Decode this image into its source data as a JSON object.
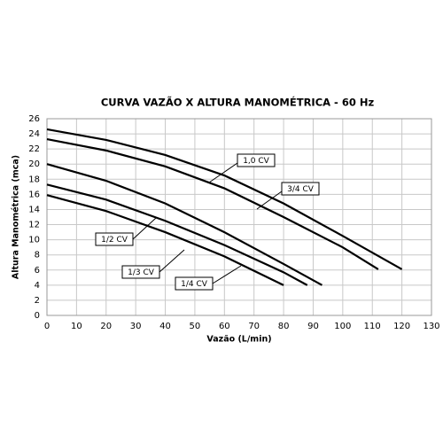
{
  "chart_data": {
    "type": "line",
    "title": "CURVA VAZÃO X ALTURA MANOMÉTRICA - 60 Hz",
    "x_label": "Vazão (L/min)",
    "y_label": "Altura Manométrica (mca)",
    "xlim": [
      0,
      130
    ],
    "xticks": [
      0,
      10,
      20,
      30,
      40,
      50,
      60,
      70,
      80,
      90,
      100,
      110,
      120,
      130
    ],
    "ylim": [
      0,
      26
    ],
    "yticks": [
      0,
      2,
      4,
      6,
      8,
      10,
      12,
      14,
      16,
      18,
      20,
      22,
      24,
      26
    ],
    "grid": true,
    "series": [
      {
        "name": "1,0 CV",
        "color": "#000000",
        "x": [
          0,
          20,
          40,
          60,
          80,
          100,
          120
        ],
        "values": [
          24.6,
          23.2,
          21.2,
          18.5,
          14.8,
          10.5,
          6.1
        ]
      },
      {
        "name": "3/4 CV",
        "color": "#000000",
        "x": [
          0,
          20,
          40,
          60,
          80,
          100,
          112
        ],
        "values": [
          23.3,
          21.8,
          19.7,
          16.8,
          13.0,
          9.0,
          6.1
        ]
      },
      {
        "name": "1/2 CV",
        "color": "#000000",
        "x": [
          0,
          20,
          40,
          60,
          80,
          93
        ],
        "values": [
          20.0,
          17.8,
          14.8,
          11.0,
          6.8,
          4.0
        ]
      },
      {
        "name": "1/3 CV",
        "color": "#000000",
        "x": [
          0,
          20,
          40,
          60,
          80,
          88
        ],
        "values": [
          17.3,
          15.3,
          12.5,
          9.3,
          5.7,
          4.0
        ]
      },
      {
        "name": "1/4 CV",
        "color": "#000000",
        "x": [
          0,
          20,
          40,
          60,
          80
        ],
        "values": [
          15.9,
          13.8,
          11.0,
          7.8,
          4.0
        ]
      }
    ]
  }
}
